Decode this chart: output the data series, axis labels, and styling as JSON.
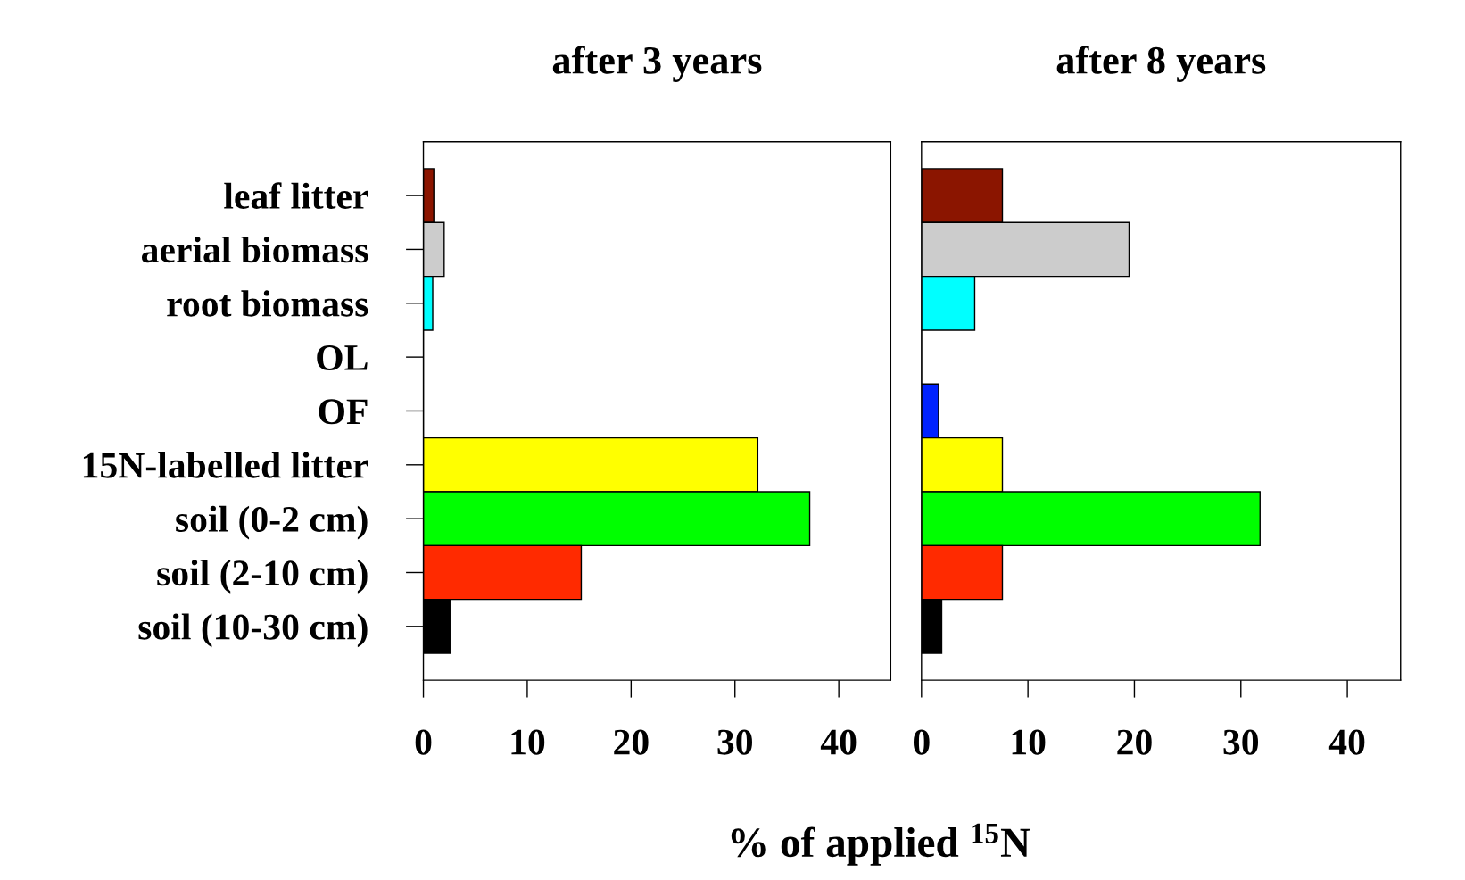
{
  "chart_data": [
    {
      "type": "bar",
      "orientation": "horizontal",
      "title": "after 3 years",
      "xlabel": "% of applied $^{15}$N",
      "categories": [
        "leaf litter",
        "aerial biomass",
        "root biomass",
        "OL",
        "OF",
        "15N-labelled litter",
        "soil (0-2 cm)",
        "soil (2-10 cm)",
        "soil (10-30 cm)"
      ],
      "values": [
        1.0,
        2.0,
        0.9,
        0,
        0,
        32.2,
        37.2,
        15.2,
        2.6
      ],
      "colors": [
        "#8b1500",
        "#cccccc",
        "#00ffff",
        "#ffffff",
        "#0022ff",
        "#ffff00",
        "#00ff00",
        "#ff2a00",
        "#000000"
      ],
      "xlim": [
        0,
        45
      ],
      "xticks": [
        0,
        10,
        20,
        30,
        40
      ],
      "grid": false
    },
    {
      "type": "bar",
      "orientation": "horizontal",
      "title": "after 8 years",
      "categories": [
        null,
        null,
        null,
        null,
        null,
        null,
        null,
        null,
        null
      ],
      "values": [
        7.6,
        19.5,
        5.0,
        0,
        1.6,
        7.6,
        31.8,
        7.6,
        1.9
      ],
      "colors": [
        "#8b1500",
        "#cccccc",
        "#00ffff",
        "#ffffff",
        "#0022ff",
        "#ffff00",
        "#00ff00",
        "#ff2a00",
        "#000000"
      ],
      "xlim": [
        0,
        45
      ],
      "xticks": [
        0,
        10,
        20,
        30,
        40
      ],
      "tick_labels": "x",
      "grid": false
    }
  ]
}
